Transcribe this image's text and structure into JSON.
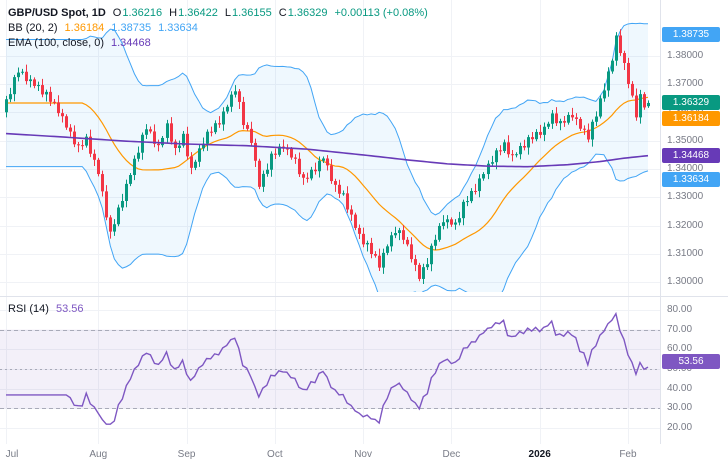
{
  "header": {
    "symbol_line": {
      "title": "GBP/USD Spot, 1D",
      "ohlc": [
        {
          "k": "O",
          "v": "1.36216"
        },
        {
          "k": "H",
          "v": "1.36422"
        },
        {
          "k": "L",
          "v": "1.36155"
        },
        {
          "k": "C",
          "v": "1.36329"
        }
      ],
      "change": "+0.00113 (+0.08%)"
    },
    "bb_line": {
      "label": "BB (20, 2)",
      "basis": "1.36184",
      "upper": "1.38735",
      "lower": "1.33634"
    },
    "ema_line": {
      "label": "EMA (100, close, 0)",
      "value": "1.34468"
    },
    "rsi_line": {
      "label": "RSI (14)",
      "value": "53.56"
    }
  },
  "colors": {
    "up": "#089981",
    "down": "#f23645",
    "bb_line": "#42a5f5",
    "bb_fill": "rgba(33,150,243,0.07)",
    "bb_basis": "#ff9800",
    "ema": "#673ab7",
    "rsi": "#7e57c2",
    "rsi_fill": "rgba(126,87,194,0.09)",
    "rsi_limit": "#a8aab8",
    "grid": "#f0f2f6",
    "separator": "#e0e3eb",
    "axis_text": "#787b86",
    "text": "#131722"
  },
  "price_axis": {
    "ticks": [
      {
        "value": 1.38,
        "label": "1.38000"
      },
      {
        "value": 1.37,
        "label": "1.37000"
      },
      {
        "value": 1.36,
        "label": "1.36000"
      },
      {
        "value": 1.35,
        "label": "1.35000"
      },
      {
        "value": 1.34,
        "label": "1.34000"
      },
      {
        "value": 1.33,
        "label": "1.33000"
      },
      {
        "value": 1.32,
        "label": "1.32000"
      },
      {
        "value": 1.31,
        "label": "1.31000"
      },
      {
        "value": 1.3,
        "label": "1.30000"
      }
    ],
    "badges": [
      {
        "value": 1.38735,
        "label": "1.38735",
        "color": "#42a5f5"
      },
      {
        "value": 1.36329,
        "label": "1.36329",
        "color": "#089981"
      },
      {
        "value": 1.36184,
        "label": "1.36184",
        "color": "#ff9800"
      },
      {
        "value": 1.34468,
        "label": "1.34468",
        "color": "#673ab7"
      },
      {
        "value": 1.33634,
        "label": "1.33634",
        "color": "#42a5f5"
      }
    ]
  },
  "rsi_axis": {
    "ticks": [
      {
        "value": 80,
        "label": "80.00"
      },
      {
        "value": 70,
        "label": "70.00"
      },
      {
        "value": 60,
        "label": "60.00"
      },
      {
        "value": 50,
        "label": "50.00"
      },
      {
        "value": 40,
        "label": "40.00"
      },
      {
        "value": 30,
        "label": "30.00"
      },
      {
        "value": 20,
        "label": "20.00"
      }
    ],
    "badge": {
      "value": 53.56,
      "label": "53.56",
      "color": "#7e57c2"
    }
  },
  "chart_data": {
    "type": "candlestick",
    "symbol": "GBP/USD Spot",
    "interval": "1D",
    "last_candle": {
      "open": 1.36216,
      "high": 1.36422,
      "low": 1.36155,
      "close": 1.36329,
      "change": 0.00113,
      "change_pct": 0.08
    },
    "indicators": {
      "bollinger": {
        "period": 20,
        "stdev": 2,
        "basis": 1.36184,
        "upper": 1.38735,
        "lower": 1.33634
      },
      "ema": {
        "period": 100,
        "source": "close",
        "offset": 0,
        "value": 1.34468
      },
      "rsi": {
        "period": 14,
        "value": 53.56,
        "upper_band": 70,
        "lower_band": 30
      }
    },
    "price_range": [
      1.298,
      1.3975
    ],
    "rsi_range": [
      15,
      85
    ],
    "candle_count": 161,
    "first_open": 1.36,
    "close_path": [
      [
        0,
        1.364
      ],
      [
        3,
        1.3745
      ],
      [
        8,
        1.369
      ],
      [
        13,
        1.361
      ],
      [
        18,
        1.347
      ],
      [
        20,
        1.3505
      ],
      [
        23,
        1.339
      ],
      [
        26,
        1.3165
      ],
      [
        29,
        1.33
      ],
      [
        32,
        1.343
      ],
      [
        35,
        1.3545
      ],
      [
        38,
        1.348
      ],
      [
        40,
        1.3555
      ],
      [
        42,
        1.346
      ],
      [
        44,
        1.3515
      ],
      [
        46,
        1.34
      ],
      [
        49,
        1.35
      ],
      [
        53,
        1.357
      ],
      [
        57,
        1.3685
      ],
      [
        59,
        1.356
      ],
      [
        61,
        1.3505
      ],
      [
        63,
        1.3345
      ],
      [
        66,
        1.344
      ],
      [
        69,
        1.3485
      ],
      [
        72,
        1.343
      ],
      [
        74,
        1.3355
      ],
      [
        77,
        1.3405
      ],
      [
        79,
        1.3445
      ],
      [
        82,
        1.333
      ],
      [
        84,
        1.3305
      ],
      [
        86,
        1.3235
      ],
      [
        88,
        1.3165
      ],
      [
        91,
        1.3105
      ],
      [
        93,
        1.3065
      ],
      [
        95,
        1.3135
      ],
      [
        97,
        1.3185
      ],
      [
        99,
        1.3155
      ],
      [
        101,
        1.3095
      ],
      [
        103,
        1.302
      ],
      [
        105,
        1.3075
      ],
      [
        107,
        1.3155
      ],
      [
        109,
        1.3225
      ],
      [
        112,
        1.3205
      ],
      [
        114,
        1.327
      ],
      [
        117,
        1.3335
      ],
      [
        119,
        1.339
      ],
      [
        121,
        1.3435
      ],
      [
        124,
        1.3485
      ],
      [
        126,
        1.3445
      ],
      [
        128,
        1.3475
      ],
      [
        131,
        1.351
      ],
      [
        134,
        1.3545
      ],
      [
        136,
        1.359
      ],
      [
        138,
        1.3555
      ],
      [
        141,
        1.3595
      ],
      [
        143,
        1.355
      ],
      [
        145,
        1.3515
      ],
      [
        147,
        1.359
      ],
      [
        149,
        1.369
      ],
      [
        151,
        1.379
      ],
      [
        152,
        1.3865
      ],
      [
        153,
        1.382
      ],
      [
        154,
        1.376
      ],
      [
        155,
        1.3705
      ],
      [
        156,
        1.365
      ],
      [
        157,
        1.3595
      ],
      [
        158,
        1.366
      ],
      [
        159,
        1.3625
      ],
      [
        160,
        1.3633
      ]
    ],
    "noise": [
      0.0006,
      -0.0011,
      0.0014,
      -0.0005,
      0.0009,
      -0.0013,
      0.0004,
      -0.0008
    ],
    "wicks": [
      0.0012,
      0.0022,
      0.0008,
      0.0018,
      0.001,
      0.0025,
      0.0015,
      0.0007
    ],
    "stdev_draw": 2.65,
    "rsi_scale": 0.85,
    "rsi_clamp": [
      22,
      80
    ],
    "ema_points": [
      [
        0,
        1.3525
      ],
      [
        15,
        1.3512
      ],
      [
        30,
        1.3498
      ],
      [
        45,
        1.3488
      ],
      [
        60,
        1.3482
      ],
      [
        75,
        1.347
      ],
      [
        90,
        1.3448
      ],
      [
        100,
        1.3432
      ],
      [
        110,
        1.3418
      ],
      [
        120,
        1.341
      ],
      [
        130,
        1.3408
      ],
      [
        140,
        1.3415
      ],
      [
        148,
        1.3426
      ],
      [
        154,
        1.3438
      ],
      [
        160,
        1.3447
      ]
    ],
    "months": [
      {
        "label": "Jul",
        "index": 0
      },
      {
        "label": "Aug",
        "index": 23
      },
      {
        "label": "Sep",
        "index": 45
      },
      {
        "label": "Oct",
        "index": 67
      },
      {
        "label": "Nov",
        "index": 89
      },
      {
        "label": "Dec",
        "index": 111
      },
      {
        "label": "2026",
        "index": 133,
        "strong": true
      },
      {
        "label": "Feb",
        "index": 155
      }
    ]
  }
}
